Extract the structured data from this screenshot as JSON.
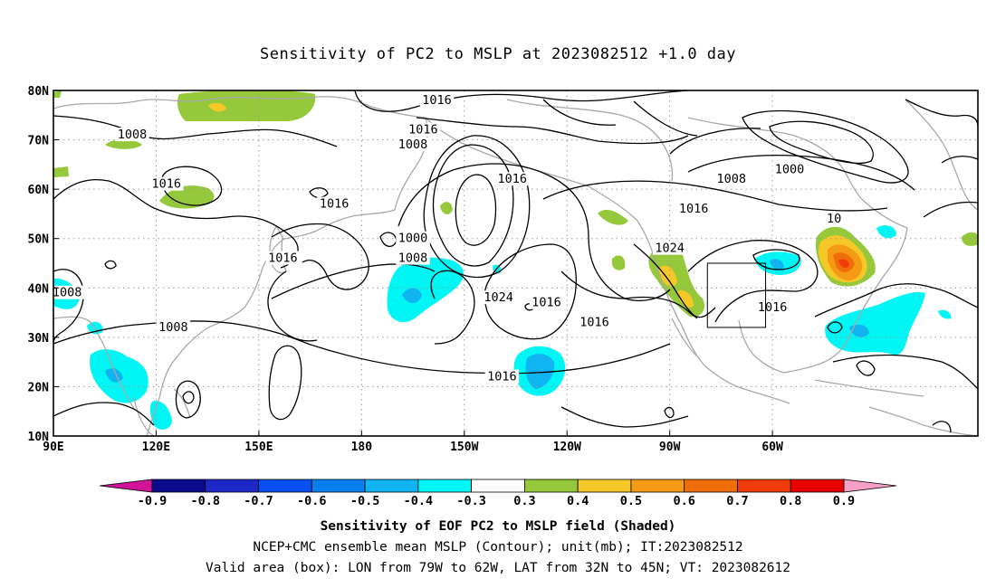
{
  "title": "Sensitivity of PC2 to MSLP at 2023082512 +1.0 day",
  "map": {
    "lat_labels": [
      "80N",
      "70N",
      "60N",
      "50N",
      "40N",
      "30N",
      "20N",
      "10N"
    ],
    "lon_labels": [
      "90E",
      "120E",
      "150E",
      "180",
      "150W",
      "120W",
      "90W",
      "60W"
    ],
    "contour_labels": [
      {
        "text": "1016",
        "lon": -158,
        "lat": 78
      },
      {
        "text": "1008",
        "lon": 113,
        "lat": 71
      },
      {
        "text": "1016",
        "lon": -162,
        "lat": 72
      },
      {
        "text": "1008",
        "lon": -165,
        "lat": 69
      },
      {
        "text": "1016",
        "lon": 123,
        "lat": 61
      },
      {
        "text": "1016",
        "lon": 172,
        "lat": 57
      },
      {
        "text": "1016",
        "lon": -136,
        "lat": 62
      },
      {
        "text": "1008",
        "lon": -72,
        "lat": 62
      },
      {
        "text": "1000",
        "lon": -55,
        "lat": 64
      },
      {
        "text": "1016",
        "lon": -83,
        "lat": 56
      },
      {
        "text": "10",
        "lon": -42,
        "lat": 54
      },
      {
        "text": "1000",
        "lon": -165,
        "lat": 50
      },
      {
        "text": "1008",
        "lon": -165,
        "lat": 46
      },
      {
        "text": "1016",
        "lon": 157,
        "lat": 46
      },
      {
        "text": "1024",
        "lon": -90,
        "lat": 48
      },
      {
        "text": "1024",
        "lon": -140,
        "lat": 38
      },
      {
        "text": "1008",
        "lon": 94,
        "lat": 39
      },
      {
        "text": "1016",
        "lon": -126,
        "lat": 37
      },
      {
        "text": "1016",
        "lon": -112,
        "lat": 33
      },
      {
        "text": "1016",
        "lon": -60,
        "lat": 36
      },
      {
        "text": "1008",
        "lon": 125,
        "lat": 32
      },
      {
        "text": "1016",
        "lon": -139,
        "lat": 22
      }
    ],
    "valid_box": {
      "lon_from": -79,
      "lon_to": -62,
      "lat_from": 32,
      "lat_to": 45
    }
  },
  "colorbar": {
    "labels": [
      "-0.9",
      "-0.8",
      "-0.7",
      "-0.6",
      "-0.5",
      "-0.4",
      "-0.3",
      "0.3",
      "0.4",
      "0.5",
      "0.6",
      "0.7",
      "0.8",
      "0.9"
    ],
    "colors": [
      "#0a0a8c",
      "#1e28c8",
      "#0a50f0",
      "#0a80f0",
      "#10b4f0",
      "#00f5f5",
      "#ffffff",
      "#96c83c",
      "#f5c828",
      "#f59a14",
      "#f06e0a",
      "#f03c0a",
      "#e60000"
    ],
    "left_arrow_color": "#d2149b",
    "right_arrow_color": "#f5a0c8"
  },
  "captions": {
    "line1": "Sensitivity of EOF PC2 to MSLP field (Shaded)",
    "line2": "NCEP+CMC ensemble mean MSLP (Contour); unit(mb); IT:2023082512",
    "line3": "Valid area (box): LON from 79W to 62W, LAT from 32N to 45N; VT: 2023082612"
  }
}
